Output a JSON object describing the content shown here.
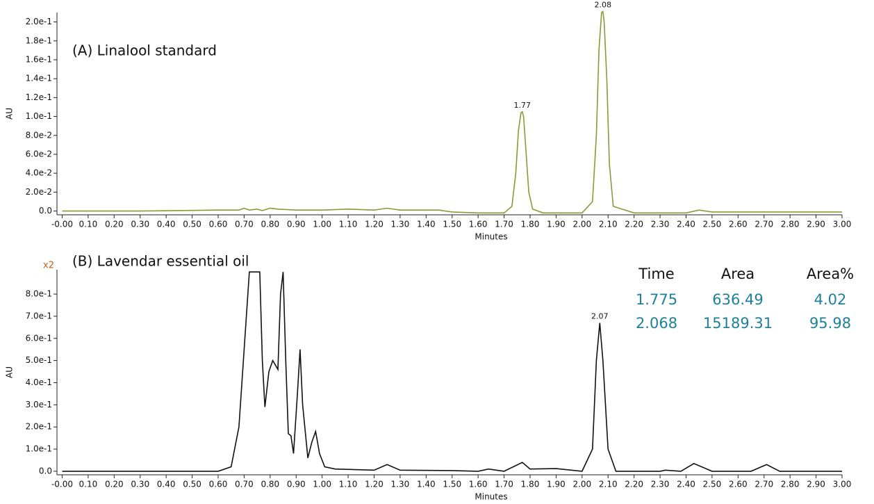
{
  "chart_data": [
    {
      "type": "line",
      "title": "(A) Linalool standard",
      "xlabel": "Minutes",
      "ylabel": "AU",
      "color": "#8a9a35",
      "x": [
        0,
        0.3,
        0.6,
        0.68,
        0.7,
        0.72,
        0.75,
        0.77,
        0.8,
        0.83,
        0.9,
        1.0,
        1.1,
        1.2,
        1.25,
        1.3,
        1.45,
        1.5,
        1.6,
        1.7,
        1.73,
        1.745,
        1.755,
        1.765,
        1.77,
        1.775,
        1.785,
        1.795,
        1.81,
        1.85,
        2.0,
        2.04,
        2.055,
        2.065,
        2.075,
        2.08,
        2.085,
        2.095,
        2.105,
        2.12,
        2.2,
        2.4,
        2.45,
        2.5,
        3.0
      ],
      "values": [
        0,
        0,
        0.001,
        0.001,
        0.003,
        0.001,
        0.002,
        0.0005,
        0.003,
        0.002,
        0.001,
        0.001,
        0.002,
        0.001,
        0.003,
        0.001,
        0.001,
        -0.001,
        -0.002,
        -0.002,
        0.005,
        0.04,
        0.085,
        0.104,
        0.105,
        0.1,
        0.06,
        0.02,
        0.002,
        -0.002,
        -0.002,
        0.01,
        0.08,
        0.17,
        0.21,
        0.211,
        0.2,
        0.14,
        0.05,
        0.005,
        -0.002,
        -0.002,
        0.001,
        -0.001,
        -0.001
      ],
      "peak_labels": [
        {
          "label": "1.77",
          "x": 1.77,
          "y": 0.105
        },
        {
          "label": "2.08",
          "x": 2.08,
          "y": 0.211
        }
      ],
      "xlim": [
        -0.02,
        3.0
      ],
      "ylim": [
        -0.004,
        0.21
      ],
      "xticks": [
        {
          "value": 0,
          "label": "-0.00"
        },
        {
          "value": 0.1,
          "label": "0.10"
        },
        {
          "value": 0.2,
          "label": "0.20"
        },
        {
          "value": 0.3,
          "label": "0.30"
        },
        {
          "value": 0.4,
          "label": "0.40"
        },
        {
          "value": 0.5,
          "label": "0.50"
        },
        {
          "value": 0.6,
          "label": "0.60"
        },
        {
          "value": 0.7,
          "label": "0.70"
        },
        {
          "value": 0.8,
          "label": "0.80"
        },
        {
          "value": 0.9,
          "label": "0.90"
        },
        {
          "value": 1.0,
          "label": "1.00"
        },
        {
          "value": 1.1,
          "label": "1.10"
        },
        {
          "value": 1.2,
          "label": "1.20"
        },
        {
          "value": 1.3,
          "label": "1.30"
        },
        {
          "value": 1.4,
          "label": "1.40"
        },
        {
          "value": 1.5,
          "label": "1.50"
        },
        {
          "value": 1.6,
          "label": "1.60"
        },
        {
          "value": 1.7,
          "label": "1.70"
        },
        {
          "value": 1.8,
          "label": "1.80"
        },
        {
          "value": 1.9,
          "label": "1.90"
        },
        {
          "value": 2.0,
          "label": "2.00"
        },
        {
          "value": 2.1,
          "label": "2.10"
        },
        {
          "value": 2.2,
          "label": "2.20"
        },
        {
          "value": 2.3,
          "label": "2.30"
        },
        {
          "value": 2.4,
          "label": "2.40"
        },
        {
          "value": 2.5,
          "label": "2.50"
        },
        {
          "value": 2.6,
          "label": "2.60"
        },
        {
          "value": 2.7,
          "label": "2.70"
        },
        {
          "value": 2.8,
          "label": "2.80"
        },
        {
          "value": 2.9,
          "label": "2.90"
        },
        {
          "value": 3.0,
          "label": "3.00"
        }
      ],
      "yticks": [
        {
          "value": 0,
          "label": "0.0"
        },
        {
          "value": 0.02,
          "label": "2.0e-2"
        },
        {
          "value": 0.04,
          "label": "4.0e-2"
        },
        {
          "value": 0.06,
          "label": "6.0e-2"
        },
        {
          "value": 0.08,
          "label": "8.0e-2"
        },
        {
          "value": 0.1,
          "label": "1.0e-1"
        },
        {
          "value": 0.12,
          "label": "1.2e-1"
        },
        {
          "value": 0.14,
          "label": "1.4e-1"
        },
        {
          "value": 0.16,
          "label": "1.6e-1"
        },
        {
          "value": 0.18,
          "label": "1.8e-1"
        },
        {
          "value": 0.2,
          "label": "2.0e-1"
        }
      ]
    },
    {
      "type": "line",
      "title": "(B) Lavendar essential oil",
      "xlabel": "Minutes",
      "ylabel": "AU",
      "color": "#111111",
      "scale_note": "x2",
      "x": [
        0,
        0.6,
        0.65,
        0.68,
        0.7,
        0.72,
        0.76,
        0.77,
        0.78,
        0.795,
        0.81,
        0.83,
        0.84,
        0.85,
        0.86,
        0.87,
        0.88,
        0.89,
        0.905,
        0.915,
        0.925,
        0.945,
        0.96,
        0.975,
        0.99,
        1.01,
        1.05,
        1.2,
        1.25,
        1.3,
        1.5,
        1.6,
        1.64,
        1.7,
        1.77,
        1.8,
        1.9,
        2.0,
        2.04,
        2.055,
        2.068,
        2.08,
        2.1,
        2.13,
        2.3,
        2.32,
        2.38,
        2.43,
        2.5,
        2.65,
        2.71,
        2.76,
        3.0
      ],
      "values": [
        0,
        0,
        0.02,
        0.2,
        0.55,
        0.9,
        0.9,
        0.5,
        0.29,
        0.45,
        0.5,
        0.46,
        0.8,
        0.9,
        0.5,
        0.17,
        0.16,
        0.08,
        0.35,
        0.55,
        0.3,
        0.06,
        0.13,
        0.18,
        0.08,
        0.02,
        0.01,
        0.005,
        0.03,
        0.005,
        0.003,
        0,
        0.01,
        0,
        0.04,
        0.01,
        0.012,
        0,
        0.1,
        0.5,
        0.67,
        0.5,
        0.1,
        0,
        0,
        0.005,
        0,
        0.035,
        0,
        0,
        0.03,
        0,
        0
      ],
      "peak_labels": [
        {
          "label": "2.07",
          "x": 2.068,
          "y": 0.67
        }
      ],
      "xlim": [
        -0.02,
        3.0
      ],
      "ylim": [
        -0.016,
        0.91
      ],
      "xticks": [
        {
          "value": 0,
          "label": "-0.00"
        },
        {
          "value": 0.1,
          "label": "0.10"
        },
        {
          "value": 0.2,
          "label": "0.20"
        },
        {
          "value": 0.3,
          "label": "0.30"
        },
        {
          "value": 0.4,
          "label": "0.40"
        },
        {
          "value": 0.5,
          "label": "0.50"
        },
        {
          "value": 0.6,
          "label": "0.60"
        },
        {
          "value": 0.7,
          "label": "0.70"
        },
        {
          "value": 0.8,
          "label": "0.80"
        },
        {
          "value": 0.9,
          "label": "0.90"
        },
        {
          "value": 1.0,
          "label": "1.00"
        },
        {
          "value": 1.1,
          "label": "1.10"
        },
        {
          "value": 1.2,
          "label": "1.20"
        },
        {
          "value": 1.3,
          "label": "1.30"
        },
        {
          "value": 1.4,
          "label": "1.40"
        },
        {
          "value": 1.5,
          "label": "1.50"
        },
        {
          "value": 1.6,
          "label": "1.60"
        },
        {
          "value": 1.7,
          "label": "1.70"
        },
        {
          "value": 1.8,
          "label": "1.80"
        },
        {
          "value": 1.9,
          "label": "1.90"
        },
        {
          "value": 2.0,
          "label": "2.00"
        },
        {
          "value": 2.1,
          "label": "2.10"
        },
        {
          "value": 2.2,
          "label": "2.20"
        },
        {
          "value": 2.3,
          "label": "2.30"
        },
        {
          "value": 2.4,
          "label": "2.40"
        },
        {
          "value": 2.5,
          "label": "2.50"
        },
        {
          "value": 2.6,
          "label": "2.60"
        },
        {
          "value": 2.7,
          "label": "2.70"
        },
        {
          "value": 2.8,
          "label": "2.80"
        },
        {
          "value": 2.9,
          "label": "2.90"
        },
        {
          "value": 3.0,
          "label": "3.00"
        }
      ],
      "yticks": [
        {
          "value": 0,
          "label": "0.0"
        },
        {
          "value": 0.1,
          "label": "1.0e-1"
        },
        {
          "value": 0.2,
          "label": "2.0e-1"
        },
        {
          "value": 0.3,
          "label": "3.0e-1"
        },
        {
          "value": 0.4,
          "label": "4.0e-1"
        },
        {
          "value": 0.5,
          "label": "5.0e-1"
        },
        {
          "value": 0.6,
          "label": "6.0e-1"
        },
        {
          "value": 0.7,
          "label": "7.0e-1"
        },
        {
          "value": 0.8,
          "label": "8.0e-1"
        }
      ],
      "table": {
        "header": [
          "Time",
          "Area",
          "Area%"
        ],
        "rows": [
          [
            1.775,
            636.49,
            4.02
          ],
          [
            2.068,
            15189.31,
            95.98
          ]
        ],
        "color": "#1f7f9c"
      }
    }
  ]
}
